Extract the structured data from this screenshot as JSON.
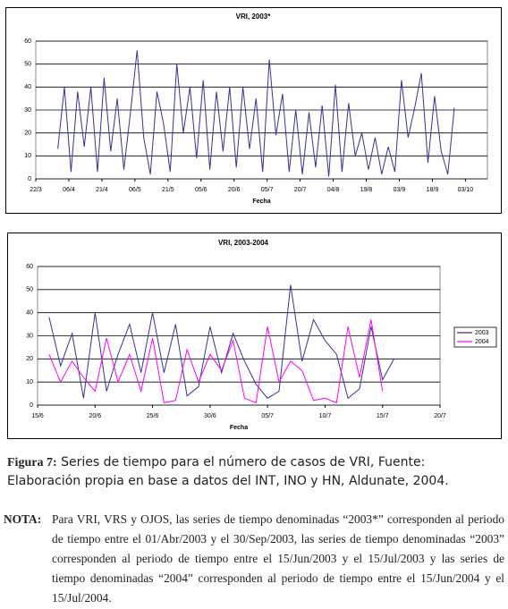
{
  "chart_data": [
    {
      "type": "line",
      "title": "VRI, 2003*",
      "x_label": "Fecha",
      "x": [
        "1/4",
        "4/4",
        "7/4",
        "10/4",
        "13/4",
        "16/4",
        "19/4",
        "22/4",
        "25/4",
        "28/4",
        "1/5",
        "4/5",
        "7/5",
        "10/5",
        "13/5",
        "16/5",
        "19/5",
        "22/5",
        "25/5",
        "28/5",
        "31/5",
        "3/6",
        "6/6",
        "9/6",
        "12/6",
        "15/6",
        "18/6",
        "21/6",
        "24/6",
        "27/6",
        "30/6",
        "3/7",
        "6/7",
        "9/7",
        "12/7",
        "15/7",
        "18/7",
        "21/7",
        "24/7",
        "27/7",
        "30/7",
        "2/8",
        "5/8",
        "8/8",
        "11/8",
        "14/8",
        "17/8",
        "20/8",
        "23/8",
        "26/8",
        "29/8",
        "1/9",
        "4/9",
        "7/9",
        "10/9",
        "13/9",
        "16/9",
        "19/9",
        "22/9",
        "25/9",
        "28/9"
      ],
      "series": [
        {
          "color": "#333399",
          "values": [
            13,
            40,
            3,
            38,
            14,
            40,
            3,
            44,
            12,
            35,
            4,
            29,
            56,
            18,
            2,
            38,
            24,
            3,
            50,
            20,
            40,
            9,
            43,
            4,
            38,
            12,
            40,
            5,
            40,
            13,
            35,
            3,
            52,
            19,
            37,
            3,
            30,
            2,
            29,
            5,
            32,
            1,
            41,
            3,
            33,
            10,
            20,
            4,
            18,
            2,
            14,
            3,
            43,
            18,
            31,
            46,
            7,
            36,
            12,
            2,
            31
          ]
        }
      ],
      "xlim": [
        "22/3",
        "13/10"
      ],
      "xticks": [
        "22/3",
        "06/4",
        "21/4",
        "06/5",
        "21/5",
        "05/6",
        "20/6",
        "05/7",
        "20/7",
        "04/8",
        "19/8",
        "03/9",
        "18/9",
        "03/10"
      ],
      "ylim": [
        0,
        60
      ],
      "yticks": [
        0,
        10,
        20,
        30,
        40,
        50,
        60
      ],
      "grid": true
    },
    {
      "type": "line",
      "title": "VRI, 2003-2004",
      "x_label": "Fecha",
      "x": [
        "16/6",
        "17/6",
        "18/6",
        "19/6",
        "20/6",
        "21/6",
        "22/6",
        "23/6",
        "24/6",
        "25/6",
        "26/6",
        "27/6",
        "28/6",
        "29/6",
        "30/6",
        "1/7",
        "2/7",
        "3/7",
        "4/7",
        "5/7",
        "6/7",
        "7/7",
        "8/7",
        "9/7",
        "10/7",
        "11/7",
        "12/7",
        "13/7",
        "14/7",
        "15/7",
        "16/7"
      ],
      "series": [
        {
          "name": "2003",
          "color": "#333399",
          "values": [
            38,
            17,
            31,
            3,
            40,
            6,
            22,
            35,
            14,
            40,
            14,
            35,
            4,
            8,
            34,
            14,
            31,
            19,
            9,
            3,
            6,
            52,
            19,
            37,
            28,
            22,
            3,
            7,
            34,
            11,
            20
          ]
        },
        {
          "name": "2004",
          "color": "#ff00ff",
          "values": [
            22,
            10,
            19,
            12,
            6,
            29,
            10,
            22,
            6,
            29,
            1,
            2,
            24,
            10,
            22,
            15,
            28,
            3,
            1,
            34,
            10,
            19,
            15,
            2,
            3,
            1,
            34,
            12,
            37,
            6,
            null
          ]
        }
      ],
      "xlim": [
        "15/6",
        "20/7"
      ],
      "xticks": [
        "15/6",
        "20/6",
        "25/6",
        "30/6",
        "05/7",
        "10/7",
        "15/7",
        "20/7"
      ],
      "ylim": [
        0,
        60
      ],
      "yticks": [
        0,
        10,
        20,
        30,
        40,
        50,
        60
      ],
      "grid": true,
      "legend": "right"
    }
  ],
  "caption": {
    "label": "Figura 7:",
    "text": "Series de tiempo para el número de casos de VRI, Fuente: Elaboración propia en base a datos del INT, INO y HN, Aldunate, 2004."
  },
  "note": {
    "label": "NOTA:",
    "text": "Para VRI, VRS y OJOS, las series de tiempo denominadas “2003*” corresponden al periodo de tiempo entre el 01/Abr/2003 y el 30/Sep/2003, las series de tiempo denominadas “2003” corresponden al periodo de tiempo entre el 15/Jun/2003 y el 15/Jul/2003 y las series de tiempo denominadas “2004” corresponden al periodo de tiempo entre el 15/Jun/2004 y el 15/Jul/2004."
  }
}
